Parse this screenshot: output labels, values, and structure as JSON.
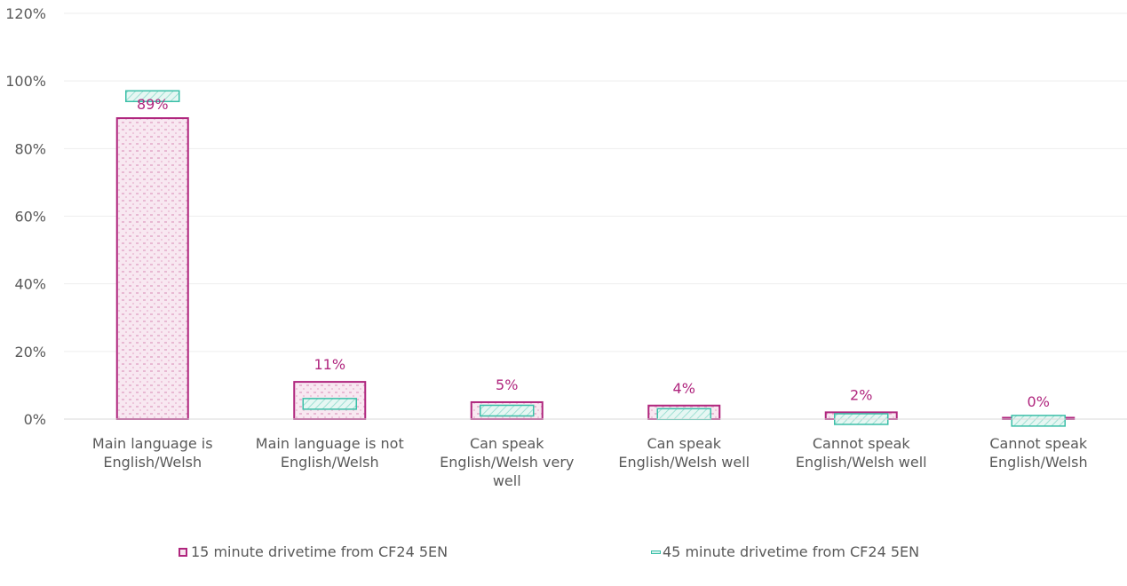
{
  "chart_data": {
    "type": "bar",
    "categories": [
      [
        "Main language is",
        "English/Welsh"
      ],
      [
        "Main language is not",
        "English/Welsh"
      ],
      [
        "Can speak",
        "English/Welsh very",
        "well"
      ],
      [
        "Can speak",
        "English/Welsh well"
      ],
      [
        "Cannot speak",
        "English/Welsh well"
      ],
      [
        "Cannot speak",
        "English/Welsh"
      ]
    ],
    "series": [
      {
        "name": "15 minute drivetime from CF24 5EN",
        "values": [
          89,
          11,
          5,
          4,
          2,
          0
        ],
        "labels": [
          "89%",
          "11%",
          "5%",
          "4%",
          "2%",
          "0%"
        ],
        "color": "#b0267e",
        "fill": "#f6e4ee"
      },
      {
        "name": "45 minute drivetime from CF24 5EN",
        "values": [
          95.5,
          4.5,
          2.5,
          1.5,
          0,
          -0.5
        ],
        "color": "#3bbfa8",
        "fill": "#d2f2ec"
      }
    ],
    "yticks": [
      "0%",
      "20%",
      "40%",
      "60%",
      "80%",
      "100%",
      "120%"
    ],
    "ylim": [
      0,
      120
    ],
    "grid": true,
    "legend_position": "bottom"
  }
}
